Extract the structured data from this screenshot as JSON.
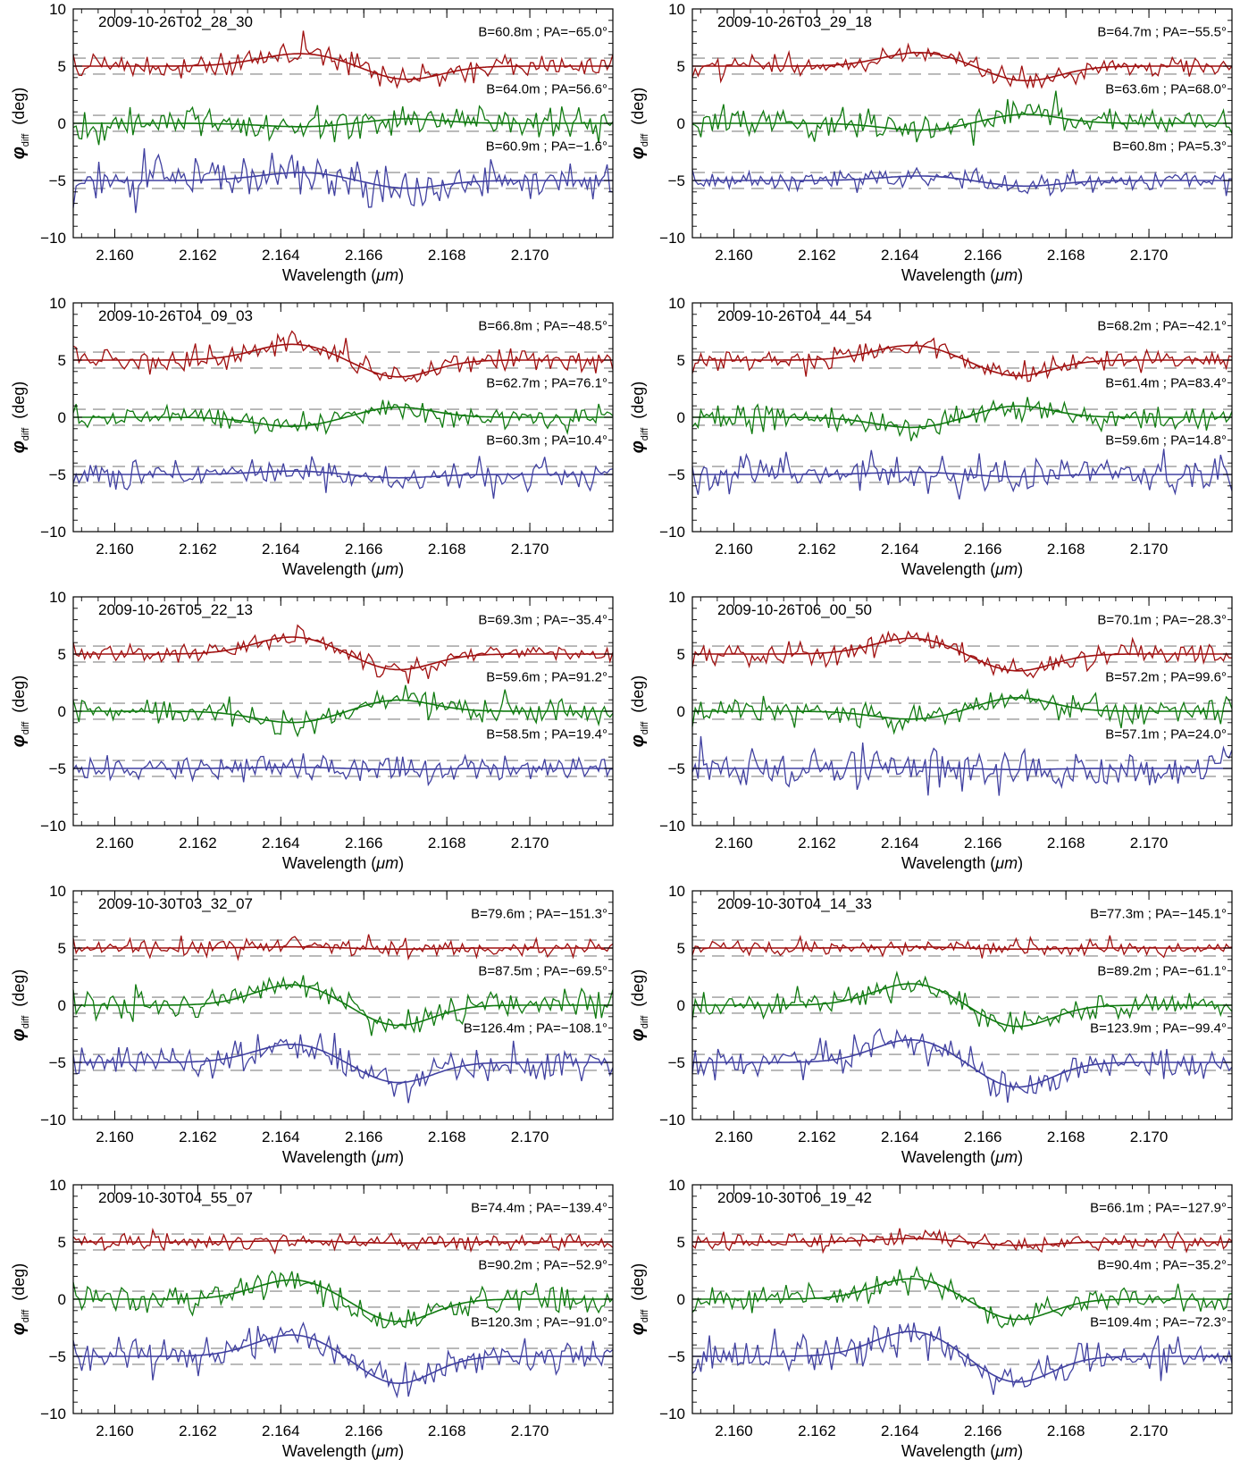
{
  "figure": {
    "x_axis": {
      "label_prefix": "Wavelength (",
      "label_unit": "μm",
      "label_suffix": ")",
      "range": [
        2.159,
        2.172
      ],
      "ticks": [
        "2.160",
        "2.162",
        "2.164",
        "2.166",
        "2.168",
        "2.170"
      ],
      "tick_values": [
        2.16,
        2.162,
        2.164,
        2.166,
        2.168,
        2.17
      ]
    },
    "y_axis": {
      "label_symbol": "φ",
      "label_subscript": "diff",
      "label_unit": "(deg)",
      "range": [
        -10,
        10
      ],
      "ticks": [
        "−10",
        "−5",
        "0",
        "5",
        "10"
      ],
      "tick_values": [
        -10,
        -5,
        0,
        5,
        10
      ]
    },
    "series_colors": {
      "red": "#a01010",
      "green": "#107a10",
      "blue": "#4040a0",
      "dashed": "#9a9a9a"
    }
  },
  "chart_data": [
    {
      "type": "line",
      "title": "2009-10-26T02_28_30",
      "xlim": [
        2.159,
        2.172
      ],
      "ylim": [
        -10,
        10
      ],
      "grid": false,
      "series": [
        {
          "label": "B=60.8m ; PA=−65.0°",
          "offset": 5,
          "color": "red",
          "dash": 0.7,
          "noise": 0.55,
          "fit": [
            [
              2.1645,
              1.1,
              0.0014
            ],
            [
              2.167,
              -1.2,
              0.0012
            ]
          ]
        },
        {
          "label": "B=64.0m ; PA=56.6°",
          "offset": 0,
          "color": "green",
          "dash": 0.7,
          "noise": 0.6,
          "fit": [
            [
              2.1645,
              -0.3,
              0.0014
            ],
            [
              2.167,
              0.4,
              0.0012
            ]
          ]
        },
        {
          "label": "B=60.9m ; PA=−1.6°",
          "offset": -5,
          "color": "blue",
          "dash": 0.7,
          "noise": 0.9,
          "fit": [
            [
              2.1645,
              0.7,
              0.0014
            ],
            [
              2.167,
              -0.7,
              0.0012
            ]
          ]
        }
      ]
    },
    {
      "type": "line",
      "title": "2009-10-26T03_29_18",
      "xlim": [
        2.159,
        2.172
      ],
      "ylim": [
        -10,
        10
      ],
      "grid": false,
      "series": [
        {
          "label": "B=64.7m ; PA=−55.5°",
          "offset": 5,
          "color": "red",
          "dash": 0.7,
          "noise": 0.45,
          "fit": [
            [
              2.1645,
              1.2,
              0.0013
            ],
            [
              2.167,
              -1.3,
              0.0012
            ]
          ]
        },
        {
          "label": "B=63.6m ; PA=68.0°",
          "offset": 0,
          "color": "green",
          "dash": 0.7,
          "noise": 0.6,
          "fit": [
            [
              2.1645,
              -0.6,
              0.0013
            ],
            [
              2.167,
              0.8,
              0.0012
            ]
          ]
        },
        {
          "label": "B=60.8m ; PA=5.3°",
          "offset": -5,
          "color": "blue",
          "dash": 0.7,
          "noise": 0.45,
          "fit": [
            [
              2.1645,
              0.4,
              0.0013
            ],
            [
              2.167,
              -0.5,
              0.0012
            ]
          ]
        }
      ]
    },
    {
      "type": "line",
      "title": "2009-10-26T04_09_03",
      "xlim": [
        2.159,
        2.172
      ],
      "ylim": [
        -10,
        10
      ],
      "grid": false,
      "series": [
        {
          "label": "B=66.8m ; PA=−48.5°",
          "offset": 5,
          "color": "red",
          "dash": 0.7,
          "noise": 0.5,
          "fit": [
            [
              2.1643,
              1.4,
              0.0013
            ],
            [
              2.1668,
              -1.5,
              0.0012
            ]
          ]
        },
        {
          "label": "B=62.7m ; PA=76.1°",
          "offset": 0,
          "color": "green",
          "dash": 0.7,
          "noise": 0.5,
          "fit": [
            [
              2.1643,
              -0.8,
              0.0013
            ],
            [
              2.1668,
              0.9,
              0.0012
            ]
          ]
        },
        {
          "label": "B=60.3m ; PA=10.4°",
          "offset": -5,
          "color": "blue",
          "dash": 0.7,
          "noise": 0.55,
          "fit": [
            [
              2.1643,
              0.3,
              0.0013
            ],
            [
              2.1668,
              -0.3,
              0.0012
            ]
          ]
        }
      ]
    },
    {
      "type": "line",
      "title": "2009-10-26T04_44_54",
      "xlim": [
        2.159,
        2.172
      ],
      "ylim": [
        -10,
        10
      ],
      "grid": false,
      "series": [
        {
          "label": "B=68.2m ; PA=−42.1°",
          "offset": 5,
          "color": "red",
          "dash": 0.7,
          "noise": 0.45,
          "fit": [
            [
              2.1643,
              1.3,
              0.0013
            ],
            [
              2.1668,
              -1.4,
              0.0012
            ]
          ]
        },
        {
          "label": "B=61.4m ; PA=83.4°",
          "offset": 0,
          "color": "green",
          "dash": 0.7,
          "noise": 0.65,
          "fit": [
            [
              2.1643,
              -0.9,
              0.0013
            ],
            [
              2.1668,
              1.0,
              0.0012
            ]
          ]
        },
        {
          "label": "B=59.6m ; PA=14.8°",
          "offset": -5,
          "color": "blue",
          "dash": 0.7,
          "noise": 0.8,
          "fit": [
            [
              2.1643,
              0.2,
              0.0013
            ],
            [
              2.1668,
              -0.2,
              0.0012
            ]
          ]
        }
      ]
    },
    {
      "type": "line",
      "title": "2009-10-26T05_22_13",
      "xlim": [
        2.159,
        2.172
      ],
      "ylim": [
        -10,
        10
      ],
      "grid": false,
      "series": [
        {
          "label": "B=69.3m ; PA=−35.4°",
          "offset": 5,
          "color": "red",
          "dash": 0.7,
          "noise": 0.4,
          "fit": [
            [
              2.1643,
              1.5,
              0.0013
            ],
            [
              2.1668,
              -1.4,
              0.0012
            ]
          ]
        },
        {
          "label": "B=59.6m ; PA=91.2°",
          "offset": 0,
          "color": "green",
          "dash": 0.7,
          "noise": 0.55,
          "fit": [
            [
              2.1643,
              -1.0,
              0.0013
            ],
            [
              2.1668,
              1.0,
              0.0012
            ]
          ]
        },
        {
          "label": "B=58.5m ; PA=19.4°",
          "offset": -5,
          "color": "blue",
          "dash": 0.7,
          "noise": 0.55,
          "fit": [
            [
              2.1643,
              0.1,
              0.0013
            ],
            [
              2.1668,
              -0.1,
              0.0012
            ]
          ]
        }
      ]
    },
    {
      "type": "line",
      "title": "2009-10-26T06_00_50",
      "xlim": [
        2.159,
        2.172
      ],
      "ylim": [
        -10,
        10
      ],
      "grid": false,
      "series": [
        {
          "label": "B=70.1m ; PA=−28.3°",
          "offset": 5,
          "color": "red",
          "dash": 0.7,
          "noise": 0.5,
          "fit": [
            [
              2.1643,
              1.4,
              0.0013
            ],
            [
              2.1668,
              -1.5,
              0.0012
            ]
          ]
        },
        {
          "label": "B=57.2m ; PA=99.6°",
          "offset": 0,
          "color": "green",
          "dash": 0.7,
          "noise": 0.65,
          "fit": [
            [
              2.1643,
              -0.7,
              0.0013
            ],
            [
              2.1668,
              1.2,
              0.0012
            ]
          ]
        },
        {
          "label": "B=57.1m ; PA=24.0°",
          "offset": -5,
          "color": "blue",
          "dash": 0.7,
          "noise": 0.9,
          "fit": [
            [
              2.1643,
              0.1,
              0.0013
            ],
            [
              2.1668,
              -0.1,
              0.0012
            ]
          ]
        }
      ]
    },
    {
      "type": "line",
      "title": "2009-10-30T03_32_07",
      "xlim": [
        2.159,
        2.172
      ],
      "ylim": [
        -10,
        10
      ],
      "grid": false,
      "series": [
        {
          "label": "B=79.6m ; PA=−151.3°",
          "offset": 5,
          "color": "red",
          "dash": 0.7,
          "noise": 0.4,
          "fit": [
            [
              2.1643,
              0.1,
              0.0013
            ],
            [
              2.1668,
              -0.1,
              0.0012
            ]
          ]
        },
        {
          "label": "B=87.5m ; PA=−69.5°",
          "offset": 0,
          "color": "green",
          "dash": 0.7,
          "noise": 0.6,
          "fit": [
            [
              2.1643,
              1.8,
              0.0013
            ],
            [
              2.1668,
              -1.8,
              0.0012
            ]
          ]
        },
        {
          "label": "B=126.4m ; PA=−108.1°",
          "offset": -5,
          "color": "blue",
          "dash": 0.7,
          "noise": 0.75,
          "fit": [
            [
              2.1643,
              1.6,
              0.0013
            ],
            [
              2.1668,
              -1.8,
              0.0012
            ]
          ]
        }
      ]
    },
    {
      "type": "line",
      "title": "2009-10-30T04_14_33",
      "xlim": [
        2.159,
        2.172
      ],
      "ylim": [
        -10,
        10
      ],
      "grid": false,
      "series": [
        {
          "label": "B=77.3m ; PA=−145.1°",
          "offset": 5,
          "color": "red",
          "dash": 0.7,
          "noise": 0.35,
          "fit": [
            [
              2.1643,
              0.1,
              0.0013
            ],
            [
              2.1668,
              -0.1,
              0.0012
            ]
          ]
        },
        {
          "label": "B=89.2m ; PA=−61.1°",
          "offset": 0,
          "color": "green",
          "dash": 0.7,
          "noise": 0.55,
          "fit": [
            [
              2.1643,
              1.9,
              0.0013
            ],
            [
              2.1668,
              -1.9,
              0.0012
            ]
          ]
        },
        {
          "label": "B=123.9m ; PA=−99.4°",
          "offset": -5,
          "color": "blue",
          "dash": 0.7,
          "noise": 0.7,
          "fit": [
            [
              2.1643,
              2.0,
              0.0013
            ],
            [
              2.1668,
              -2.2,
              0.0012
            ]
          ]
        }
      ]
    },
    {
      "type": "line",
      "title": "2009-10-30T04_55_07",
      "xlim": [
        2.159,
        2.172
      ],
      "ylim": [
        -10,
        10
      ],
      "grid": false,
      "series": [
        {
          "label": "B=74.4m ; PA=−139.4°",
          "offset": 5,
          "color": "red",
          "dash": 0.7,
          "noise": 0.35,
          "fit": [
            [
              2.1643,
              0.1,
              0.0013
            ],
            [
              2.1668,
              -0.1,
              0.0012
            ]
          ]
        },
        {
          "label": "B=90.2m ; PA=−52.9°",
          "offset": 0,
          "color": "green",
          "dash": 0.7,
          "noise": 0.65,
          "fit": [
            [
              2.1643,
              1.7,
              0.0013
            ],
            [
              2.1668,
              -2.0,
              0.0012
            ]
          ]
        },
        {
          "label": "B=120.3m ; PA=−91.0°",
          "offset": -5,
          "color": "blue",
          "dash": 0.7,
          "noise": 0.8,
          "fit": [
            [
              2.1643,
              1.9,
              0.0013
            ],
            [
              2.1668,
              -2.4,
              0.0012
            ]
          ]
        }
      ]
    },
    {
      "type": "line",
      "title": "2009-10-30T06_19_42",
      "xlim": [
        2.159,
        2.172
      ],
      "ylim": [
        -10,
        10
      ],
      "grid": false,
      "series": [
        {
          "label": "B=66.1m ; PA=−127.9°",
          "offset": 5,
          "color": "red",
          "dash": 0.7,
          "noise": 0.35,
          "fit": [
            [
              2.1643,
              0.3,
              0.0013
            ],
            [
              2.1668,
              -0.3,
              0.0012
            ]
          ]
        },
        {
          "label": "B=90.4m ; PA=−35.2°",
          "offset": 0,
          "color": "green",
          "dash": 0.7,
          "noise": 0.55,
          "fit": [
            [
              2.1643,
              1.8,
              0.0013
            ],
            [
              2.1668,
              -1.8,
              0.0012
            ]
          ]
        },
        {
          "label": "B=109.4m ; PA=−72.3°",
          "offset": -5,
          "color": "blue",
          "dash": 0.7,
          "noise": 0.75,
          "fit": [
            [
              2.1643,
              2.2,
              0.0013
            ],
            [
              2.1668,
              -2.3,
              0.0012
            ]
          ]
        }
      ]
    }
  ]
}
